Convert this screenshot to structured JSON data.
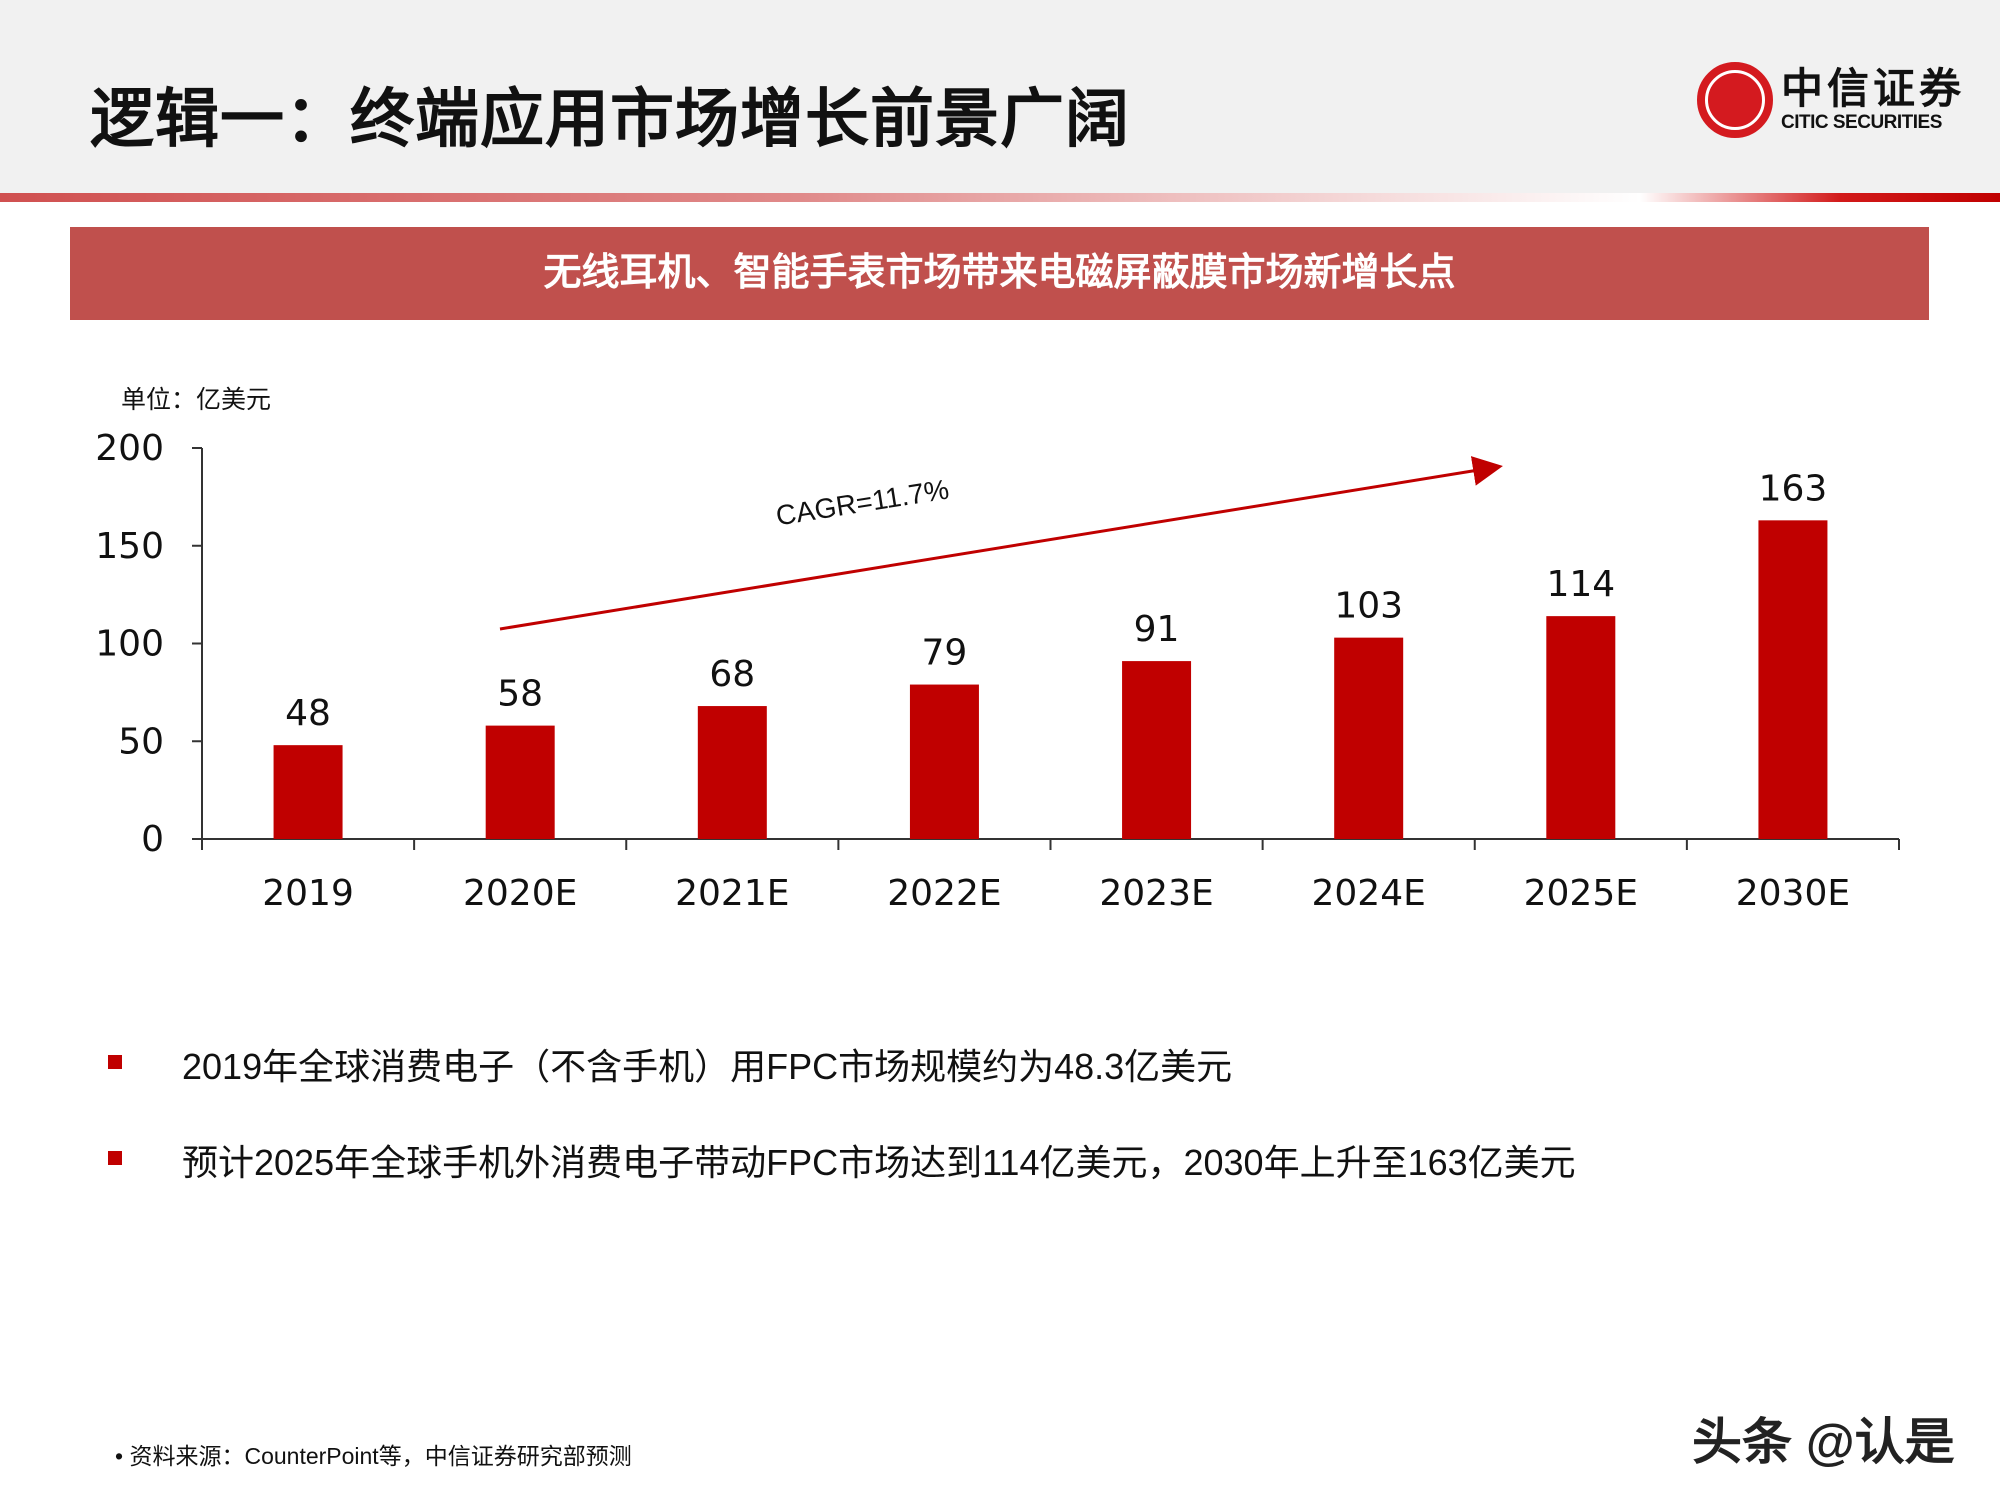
{
  "header": {
    "title": "逻辑一：终端应用市场增长前景广阔",
    "logo_cn": "中信证券",
    "logo_en": "CITIC SECURITIES"
  },
  "banner": "无线耳机、智能手表市场带来电磁屏蔽膜市场新增长点",
  "chart_data": {
    "type": "bar",
    "unit_label": "单位：亿美元",
    "categories": [
      "2019",
      "2020E",
      "2021E",
      "2022E",
      "2023E",
      "2024E",
      "2025E",
      "2030E"
    ],
    "values": [
      48,
      58,
      68,
      79,
      91,
      103,
      114,
      163
    ],
    "data_labels": [
      "48",
      "58",
      "68",
      "79",
      "91",
      "103",
      "114",
      "163"
    ],
    "yticks": [
      "0",
      "50",
      "100",
      "150",
      "200"
    ],
    "ylim": [
      0,
      200
    ],
    "bar_color": "#c00000",
    "annotation": "CAGR=11.7%",
    "grid": false
  },
  "bullets": [
    "2019年全球消费电子（不含手机）用FPC市场规模约为48.3亿美元",
    "预计2025年全球手机外消费电子带动FPC市场达到114亿美元，2030年上升至163亿美元"
  ],
  "footer": {
    "source": "资料来源：CounterPoint等，中信证券研究部预测",
    "watermark": "头条 @认是"
  }
}
